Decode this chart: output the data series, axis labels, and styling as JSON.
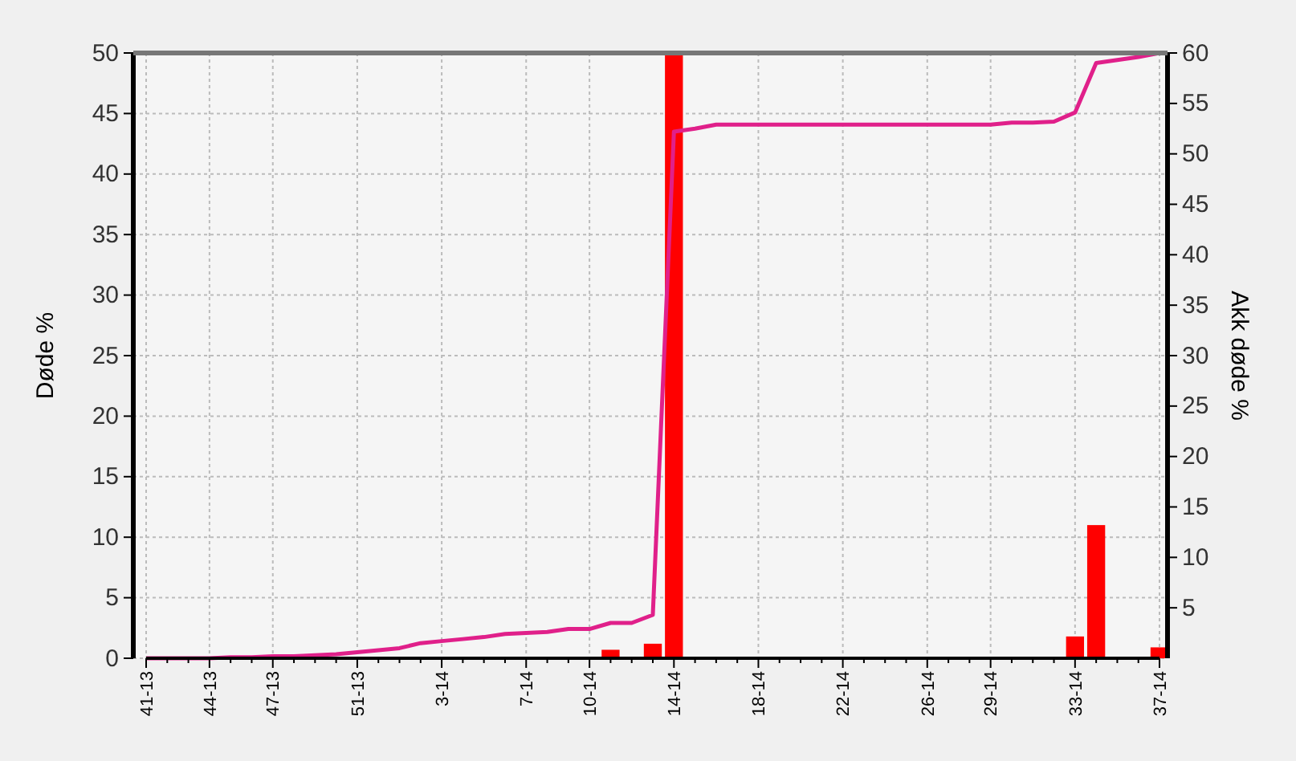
{
  "chart_data": {
    "type": "bar",
    "ylabel": "Døde %",
    "y2label": "Akk døde %",
    "categories": [
      "41-13",
      null,
      null,
      "44-13",
      null,
      null,
      "47-13",
      null,
      null,
      null,
      "51-13",
      null,
      null,
      null,
      "3-14",
      null,
      null,
      null,
      "7-14",
      null,
      null,
      "10-14",
      null,
      null,
      null,
      "14-14",
      null,
      null,
      null,
      "18-14",
      null,
      null,
      null,
      "22-14",
      null,
      null,
      null,
      "26-14",
      null,
      null,
      "29-14",
      null,
      null,
      null,
      "33-14",
      null,
      null,
      null,
      "37-14"
    ],
    "series": [
      {
        "color": "#ff0000",
        "values": [
          0,
          0,
          0,
          0,
          0,
          0,
          0,
          0,
          0,
          0,
          0,
          0,
          0,
          0,
          0,
          0,
          0,
          0,
          0,
          0,
          0,
          0,
          0.7,
          0,
          1.2,
          50,
          null,
          0,
          0,
          0,
          0,
          0,
          0,
          0,
          0,
          0,
          0,
          0,
          0,
          0,
          0,
          0,
          0,
          0,
          1.8,
          11,
          0,
          0,
          0.9
        ]
      },
      {
        "type": "line",
        "axis": "y2",
        "color": "#e0208a",
        "values": [
          0,
          0,
          0,
          0,
          0.1,
          0.1,
          0.2,
          0.2,
          0.3,
          0.4,
          0.6,
          0.8,
          1.0,
          1.5,
          1.7,
          1.9,
          2.1,
          2.4,
          2.5,
          2.6,
          2.9,
          2.9,
          3.5,
          3.5,
          4.3,
          52.2,
          52.5,
          52.9,
          52.9,
          52.9,
          52.9,
          52.9,
          52.9,
          52.9,
          52.9,
          52.9,
          52.9,
          52.9,
          52.9,
          52.9,
          52.9,
          53.1,
          53.1,
          53.2,
          54.1,
          59,
          59.3,
          59.6,
          60
        ]
      }
    ],
    "ylim": [
      0,
      50
    ],
    "yticks": [
      0,
      5,
      10,
      15,
      20,
      25,
      30,
      35,
      40,
      45,
      50
    ],
    "y2lim": [
      0,
      60
    ],
    "y2ticks": [
      5,
      10,
      15,
      20,
      25,
      30,
      35,
      40,
      45,
      50,
      55,
      60
    ],
    "grid": true
  }
}
